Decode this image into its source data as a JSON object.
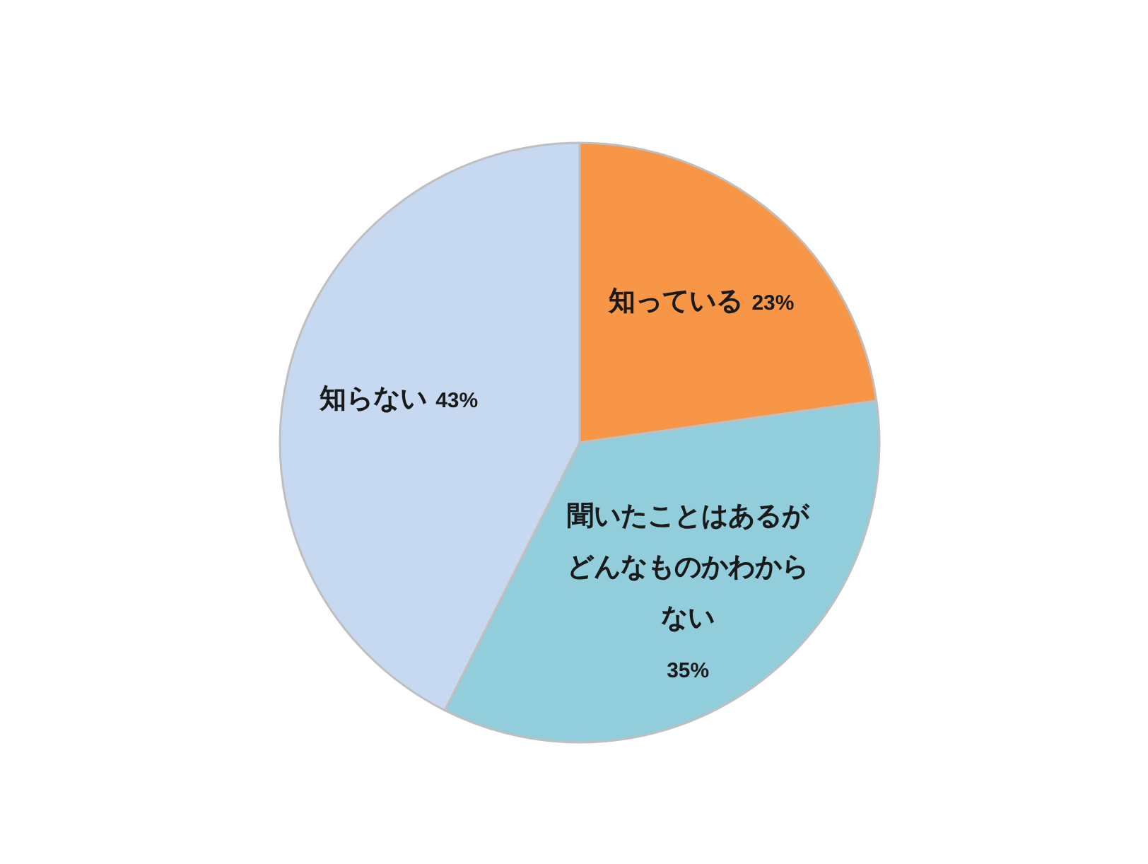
{
  "chart_data": {
    "type": "pie",
    "categories": [
      "知っている",
      "聞いたことはあるがどんなものかわからない",
      "知らない"
    ],
    "values": [
      23,
      35,
      43
    ],
    "colors": [
      "#f79646",
      "#92cddc",
      "#c6d9f1"
    ],
    "value_labels": [
      "23%",
      "35%",
      "43%"
    ]
  }
}
